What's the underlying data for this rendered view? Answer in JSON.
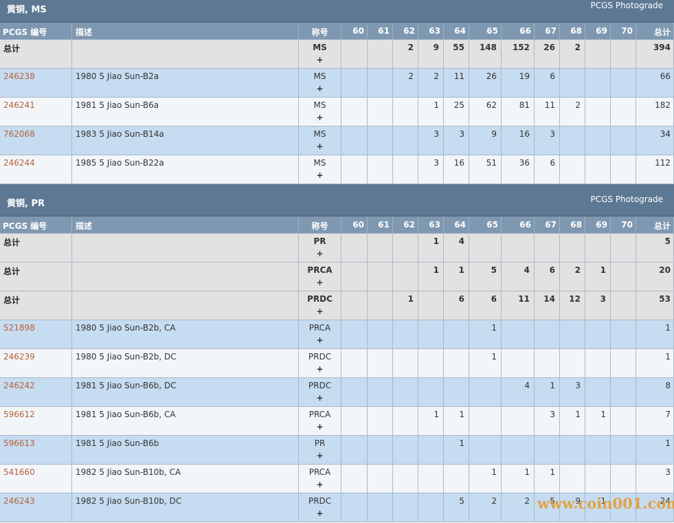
{
  "sections": [
    {
      "title": "黄铜, MS",
      "link": "PCGS Photograde",
      "columns": [
        "PCGS 编号",
        "描述",
        "称号",
        60,
        61,
        62,
        63,
        64,
        65,
        66,
        67,
        68,
        69,
        70,
        "总计"
      ],
      "rows": [
        {
          "id": "总计",
          "desc": null,
          "designation": "MS",
          "plus": "+",
          "grades": [
            null,
            null,
            2,
            9,
            55,
            148,
            152,
            26,
            2,
            null,
            null
          ],
          "total": 394
        },
        {
          "id": "246238",
          "desc": "1980 5 Jiao Sun-B2a",
          "designation": "MS",
          "plus": "+",
          "grades": [
            null,
            null,
            2,
            2,
            11,
            26,
            19,
            6,
            null,
            null,
            null
          ],
          "total": 66
        },
        {
          "id": "246241",
          "desc": "1981 5 Jiao Sun-B6a",
          "designation": "MS",
          "plus": "+",
          "grades": [
            null,
            null,
            null,
            1,
            25,
            62,
            81,
            11,
            2,
            null,
            null
          ],
          "total": 182
        },
        {
          "id": "762068",
          "desc": "1983 5 Jiao Sun-B14a",
          "designation": "MS",
          "plus": "+",
          "grades": [
            null,
            null,
            null,
            3,
            3,
            9,
            16,
            3,
            null,
            null,
            null
          ],
          "total": 34
        },
        {
          "id": "246244",
          "desc": "1985 5 Jiao Sun-B22a",
          "designation": "MS",
          "plus": "+",
          "grades": [
            null,
            null,
            null,
            3,
            16,
            51,
            36,
            6,
            null,
            null,
            null
          ],
          "total": 112
        }
      ]
    },
    {
      "title": "黄铜, PR",
      "link": "PCGS Photograde",
      "columns": [
        "PCGS 编号",
        "描述",
        "称号",
        60,
        61,
        62,
        63,
        64,
        65,
        66,
        67,
        68,
        69,
        70,
        "总计"
      ],
      "rows": [
        {
          "id": "总计",
          "desc": null,
          "designation": "PR",
          "plus": "+",
          "grades": [
            null,
            null,
            null,
            1,
            4,
            null,
            null,
            null,
            null,
            null,
            null
          ],
          "total": 5
        },
        {
          "id": "总计",
          "desc": null,
          "designation": "PRCA",
          "plus": "+",
          "grades": [
            null,
            null,
            null,
            1,
            1,
            5,
            4,
            6,
            2,
            1,
            null
          ],
          "total": 20
        },
        {
          "id": "总计",
          "desc": null,
          "designation": "PRDC",
          "plus": "+",
          "grades": [
            null,
            null,
            1,
            null,
            6,
            6,
            11,
            14,
            12,
            3,
            null
          ],
          "total": 53
        },
        {
          "id": "521898",
          "desc": "1980 5 Jiao Sun-B2b, CA",
          "designation": "PRCA",
          "plus": "+",
          "grades": [
            null,
            null,
            null,
            null,
            null,
            1,
            null,
            null,
            null,
            null,
            null
          ],
          "total": 1
        },
        {
          "id": "246239",
          "desc": "1980 5 Jiao Sun-B2b, DC",
          "designation": "PRDC",
          "plus": "+",
          "grades": [
            null,
            null,
            null,
            null,
            null,
            1,
            null,
            null,
            null,
            null,
            null
          ],
          "total": 1
        },
        {
          "id": "246242",
          "desc": "1981 5 Jiao Sun-B6b, DC",
          "designation": "PRDC",
          "plus": "+",
          "grades": [
            null,
            null,
            null,
            null,
            null,
            null,
            4,
            1,
            3,
            null,
            null
          ],
          "total": 8
        },
        {
          "id": "596612",
          "desc": "1981 5 Jiao Sun-B6b, CA",
          "designation": "PRCA",
          "plus": "+",
          "grades": [
            null,
            null,
            null,
            1,
            1,
            null,
            null,
            3,
            1,
            1,
            null
          ],
          "total": 7
        },
        {
          "id": "596613",
          "desc": "1981 5 Jiao Sun-B6b",
          "designation": "PR",
          "plus": "+",
          "grades": [
            null,
            null,
            null,
            null,
            1,
            null,
            null,
            null,
            null,
            null,
            null
          ],
          "total": 1
        },
        {
          "id": "541660",
          "desc": "1982 5 Jiao Sun-B10b, CA",
          "designation": "PRCA",
          "plus": "+",
          "grades": [
            null,
            null,
            null,
            null,
            null,
            1,
            1,
            1,
            null,
            null,
            null
          ],
          "total": 3
        },
        {
          "id": "246243",
          "desc": "1982 5 Jiao Sun-B10b, DC",
          "designation": "PRDC",
          "plus": "+",
          "grades": [
            null,
            null,
            null,
            null,
            5,
            2,
            2,
            5,
            9,
            1,
            null
          ],
          "total": 24
        }
      ]
    }
  ],
  "watermark": "www.coin001.com"
}
